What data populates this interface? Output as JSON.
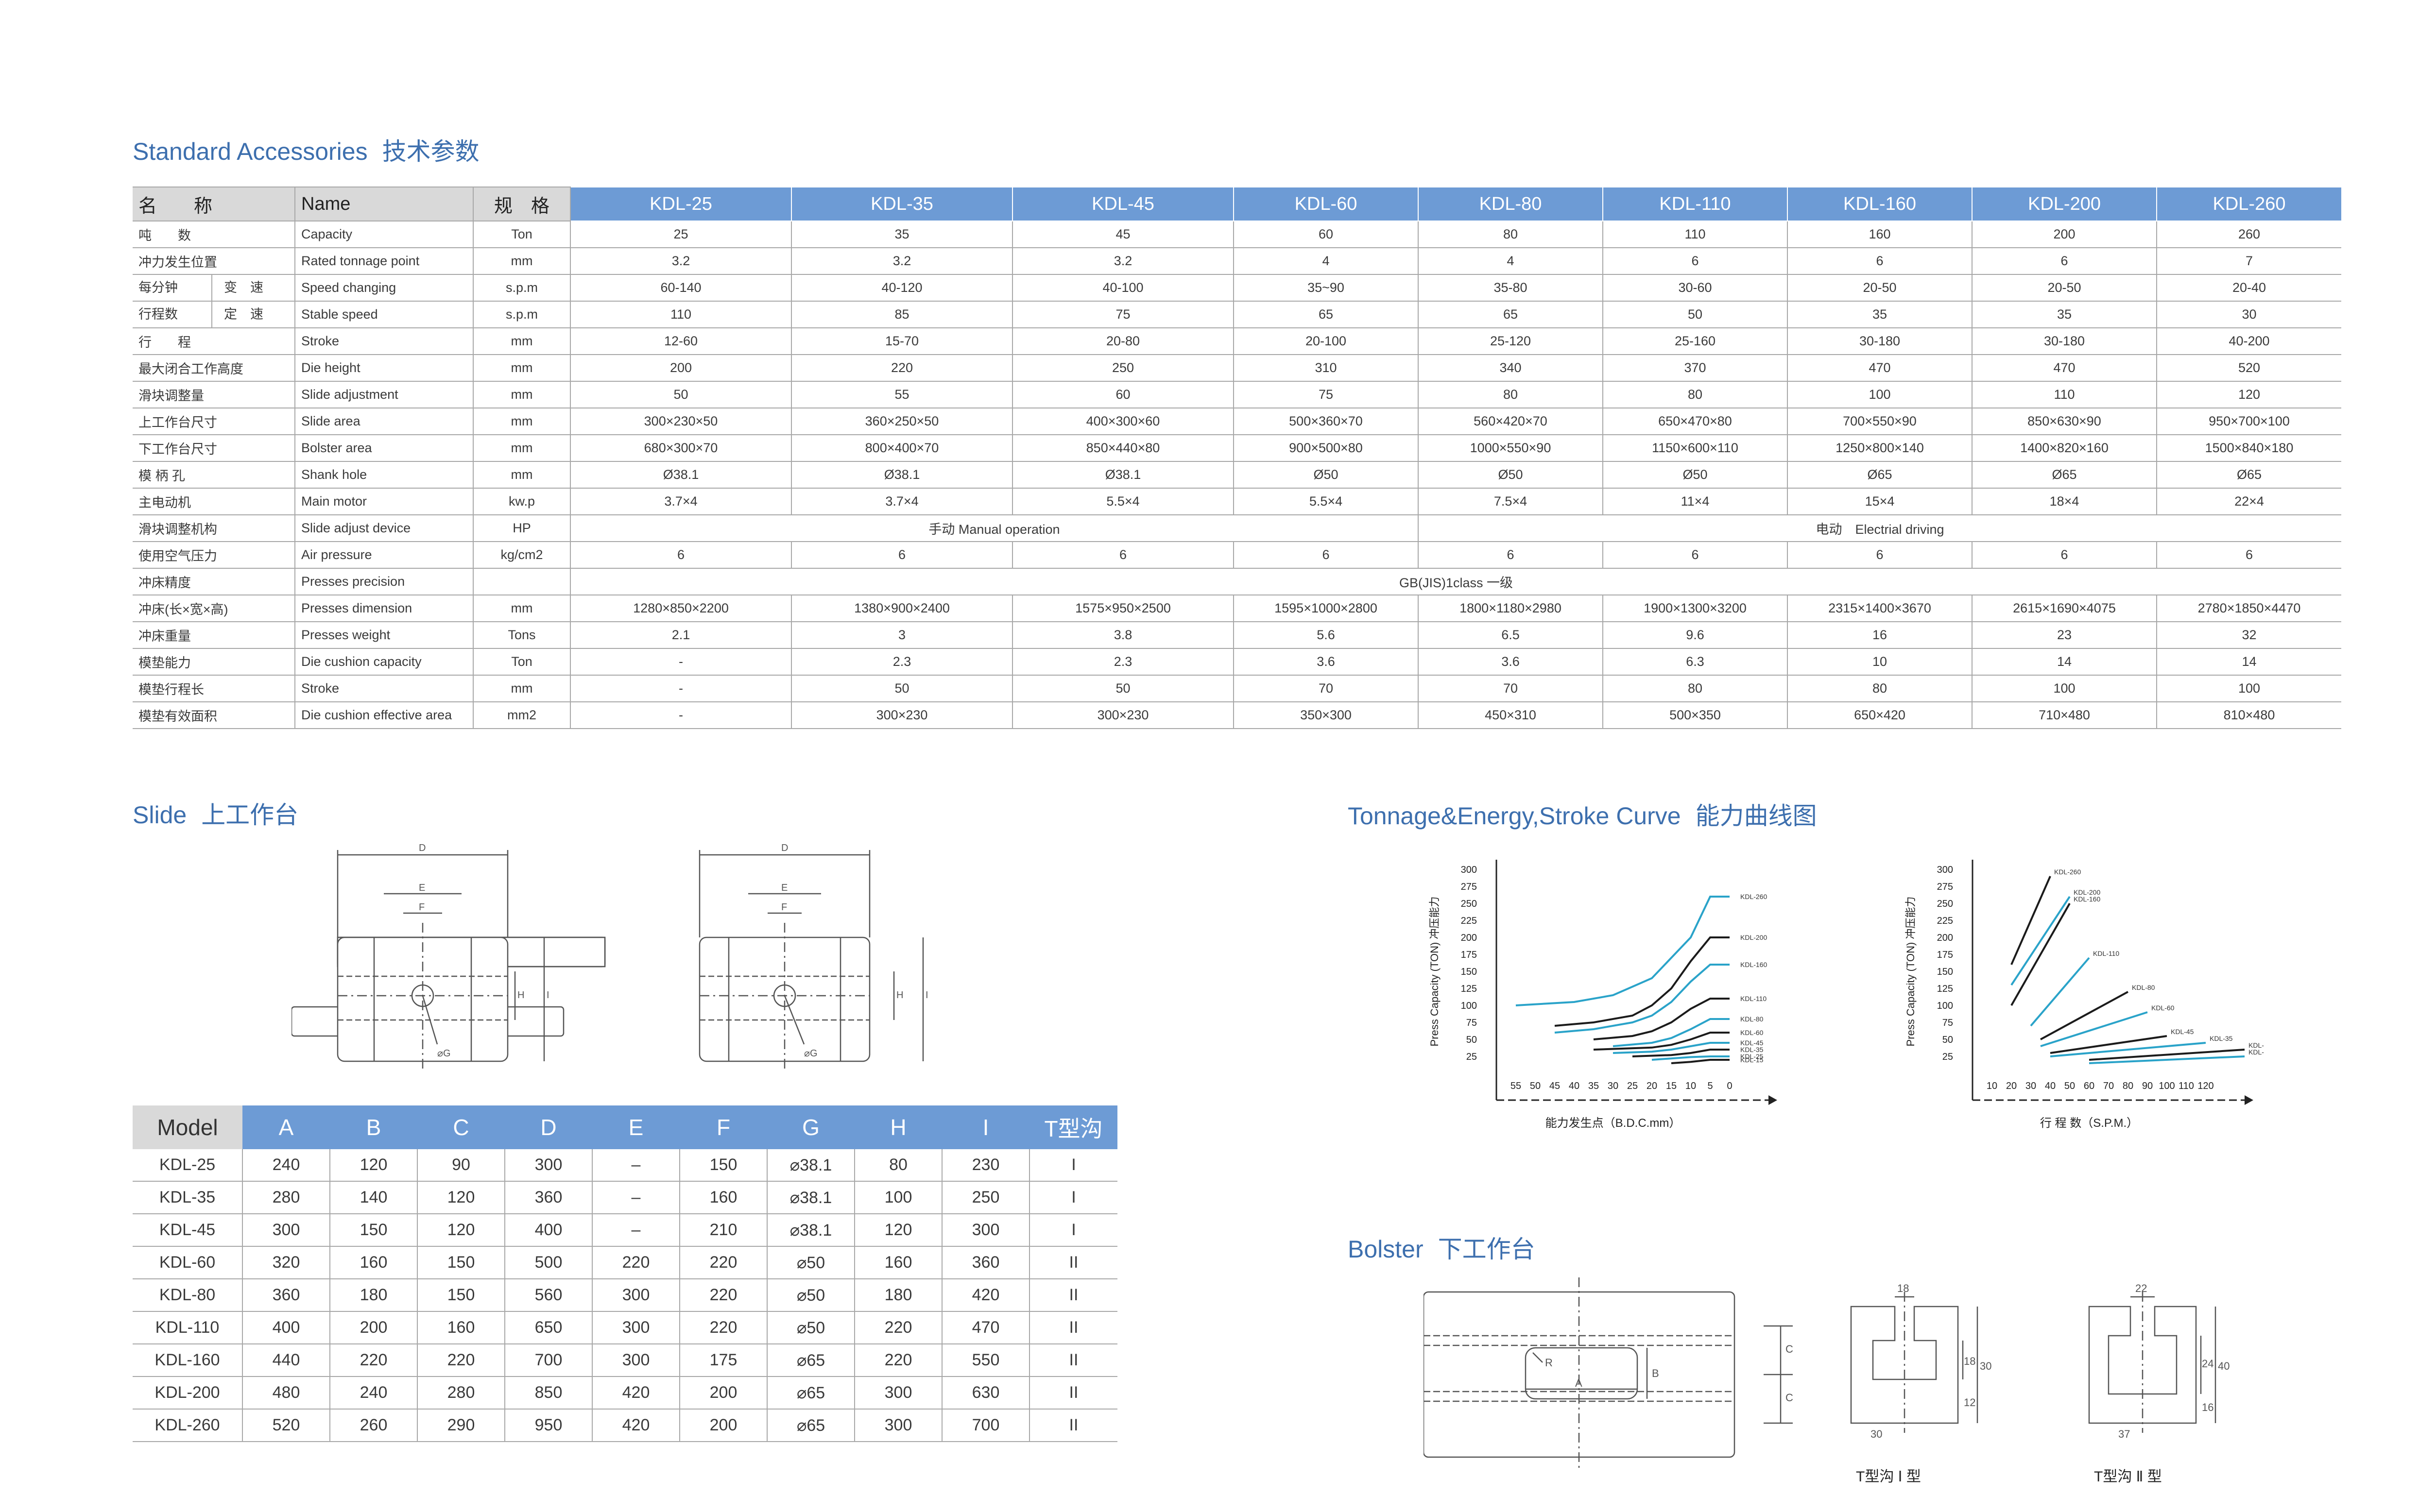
{
  "titles": {
    "accessories_en": "Standard Accessories",
    "accessories_zh": "技术参数",
    "slide_en": "Slide",
    "slide_zh": "上工作台",
    "curve_en": "Tonnage&Energy,Stroke Curve",
    "curve_zh": "能力曲线图",
    "bolster_en": "Bolster",
    "bolster_zh": "下工作台"
  },
  "spec_header": {
    "name_zh": "名　　称",
    "name_en": "Name",
    "unit": "规　格",
    "models": [
      "KDL-25",
      "KDL-35",
      "KDL-45",
      "KDL-60",
      "KDL-80",
      "KDL-110",
      "KDL-160",
      "KDL-200",
      "KDL-260"
    ]
  },
  "spec_rows": [
    {
      "zh": "吨　　数",
      "en": "Capacity",
      "unit": "Ton",
      "values": [
        "25",
        "35",
        "45",
        "60",
        "80",
        "110",
        "160",
        "200",
        "260"
      ]
    },
    {
      "zh": "冲力发生位置",
      "en": "Rated tonnage point",
      "unit": "mm",
      "values": [
        "3.2",
        "3.2",
        "3.2",
        "4",
        "4",
        "6",
        "6",
        "6",
        "7"
      ]
    },
    {
      "zh": "每分钟",
      "zh2": "变　速",
      "en": "Speed changing",
      "unit": "s.p.m",
      "values": [
        "60-140",
        "40-120",
        "40-100",
        "35~90",
        "35-80",
        "30-60",
        "20-50",
        "20-50",
        "20-40"
      ]
    },
    {
      "zh": "行程数",
      "zh2": "定　速",
      "en": "Stable speed",
      "unit": "s.p.m",
      "values": [
        "110",
        "85",
        "75",
        "65",
        "65",
        "50",
        "35",
        "35",
        "30"
      ]
    },
    {
      "zh": "行　　程",
      "en": "Stroke",
      "unit": "mm",
      "values": [
        "12-60",
        "15-70",
        "20-80",
        "20-100",
        "25-120",
        "25-160",
        "30-180",
        "30-180",
        "40-200"
      ]
    },
    {
      "zh": "最大闭合工作高度",
      "en": "Die height",
      "unit": "mm",
      "values": [
        "200",
        "220",
        "250",
        "310",
        "340",
        "370",
        "470",
        "470",
        "520"
      ]
    },
    {
      "zh": "滑块调整量",
      "en": "Slide adjustment",
      "unit": "mm",
      "values": [
        "50",
        "55",
        "60",
        "75",
        "80",
        "80",
        "100",
        "110",
        "120"
      ]
    },
    {
      "zh": "上工作台尺寸",
      "en": "Slide area",
      "unit": "mm",
      "values": [
        "300×230×50",
        "360×250×50",
        "400×300×60",
        "500×360×70",
        "560×420×70",
        "650×470×80",
        "700×550×90",
        "850×630×90",
        "950×700×100"
      ]
    },
    {
      "zh": "下工作台尺寸",
      "en": "Bolster area",
      "unit": "mm",
      "values": [
        "680×300×70",
        "800×400×70",
        "850×440×80",
        "900×500×80",
        "1000×550×90",
        "1150×600×110",
        "1250×800×140",
        "1400×820×160",
        "1500×840×180"
      ]
    },
    {
      "zh": "模 柄 孔",
      "en": "Shank hole",
      "unit": "mm",
      "values": [
        "Ø38.1",
        "Ø38.1",
        "Ø38.1",
        "Ø50",
        "Ø50",
        "Ø50",
        "Ø65",
        "Ø65",
        "Ø65"
      ]
    },
    {
      "zh": "主电动机",
      "en": "Main motor",
      "unit": "kw.p",
      "values": [
        "3.7×4",
        "3.7×4",
        "5.5×4",
        "5.5×4",
        "7.5×4",
        "11×4",
        "15×4",
        "18×4",
        "22×4"
      ]
    },
    {
      "zh": "滑块调整机构",
      "en": "Slide adjust device",
      "unit": "HP",
      "manual": "手动 Manual operation",
      "electric": "电动　Electrial driving"
    },
    {
      "zh": "使用空气压力",
      "en": "Air pressure",
      "unit": "kg/cm2",
      "values": [
        "6",
        "6",
        "6",
        "6",
        "6",
        "6",
        "6",
        "6",
        "6"
      ]
    },
    {
      "zh": "冲床精度",
      "en": "Presses precision",
      "unit": "",
      "span": "GB(JIS)1class 一级"
    },
    {
      "zh": "冲床(长×宽×高)",
      "en": "Presses dimension",
      "unit": "mm",
      "values": [
        "1280×850×2200",
        "1380×900×2400",
        "1575×950×2500",
        "1595×1000×2800",
        "1800×1180×2980",
        "1900×1300×3200",
        "2315×1400×3670",
        "2615×1690×4075",
        "2780×1850×4470"
      ]
    },
    {
      "zh": "冲床重量",
      "en": "Presses weight",
      "unit": "Tons",
      "values": [
        "2.1",
        "3",
        "3.8",
        "5.6",
        "6.5",
        "9.6",
        "16",
        "23",
        "32"
      ]
    },
    {
      "zh": "模垫能力",
      "en": "Die cushion capacity",
      "unit": "Ton",
      "values": [
        "-",
        "2.3",
        "2.3",
        "3.6",
        "3.6",
        "6.3",
        "10",
        "14",
        "14"
      ]
    },
    {
      "zh": "模垫行程长",
      "en": "Stroke",
      "unit": "mm",
      "values": [
        "-",
        "50",
        "50",
        "70",
        "70",
        "80",
        "80",
        "100",
        "100"
      ]
    },
    {
      "zh": "模垫有效面积",
      "en": "Die cushion effective area",
      "unit": "mm2",
      "values": [
        "-",
        "300×230",
        "300×230",
        "350×300",
        "450×310",
        "500×350",
        "650×420",
        "710×480",
        "810×480"
      ]
    }
  ],
  "slide_table": {
    "columns": [
      "Model",
      "A",
      "B",
      "C",
      "D",
      "E",
      "F",
      "G",
      "H",
      "I",
      "T型沟"
    ],
    "rows": [
      [
        "KDL-25",
        "240",
        "120",
        "90",
        "300",
        "–",
        "150",
        "⌀38.1",
        "80",
        "230",
        "I"
      ],
      [
        "KDL-35",
        "280",
        "140",
        "120",
        "360",
        "–",
        "160",
        "⌀38.1",
        "100",
        "250",
        "I"
      ],
      [
        "KDL-45",
        "300",
        "150",
        "120",
        "400",
        "–",
        "210",
        "⌀38.1",
        "120",
        "300",
        "I"
      ],
      [
        "KDL-60",
        "320",
        "160",
        "150",
        "500",
        "220",
        "220",
        "⌀50",
        "160",
        "360",
        "II"
      ],
      [
        "KDL-80",
        "360",
        "180",
        "150",
        "560",
        "300",
        "220",
        "⌀50",
        "180",
        "420",
        "II"
      ],
      [
        "KDL-110",
        "400",
        "200",
        "160",
        "650",
        "300",
        "220",
        "⌀50",
        "220",
        "470",
        "II"
      ],
      [
        "KDL-160",
        "440",
        "220",
        "220",
        "700",
        "300",
        "175",
        "⌀65",
        "220",
        "550",
        "II"
      ],
      [
        "KDL-200",
        "480",
        "240",
        "280",
        "850",
        "420",
        "200",
        "⌀65",
        "300",
        "630",
        "II"
      ],
      [
        "KDL-260",
        "520",
        "260",
        "290",
        "950",
        "420",
        "200",
        "⌀65",
        "300",
        "700",
        "II"
      ]
    ]
  },
  "slide_drawing_labels": {
    "d": "D",
    "e": "E",
    "f": "F",
    "h": "H",
    "i": "I",
    "g": "⌀G"
  },
  "chart_data": [
    {
      "type": "line",
      "ylabel": "Press Capacity (TON) 冲压能力",
      "xlabel": "能力发生点（B.D.C.mm）",
      "y_ticks": [
        "300",
        "275",
        "250",
        "225",
        "200",
        "175",
        "150",
        "125",
        "100",
        "75",
        "50",
        "25"
      ],
      "x_ticks": [
        "55",
        "50",
        "45",
        "40",
        "35",
        "30",
        "25",
        "20",
        "15",
        "10",
        "5",
        "0"
      ],
      "series": [
        {
          "name": "KDL-260",
          "color": "#2aa3c9",
          "x": [
            55,
            40,
            30,
            20,
            15,
            10,
            5,
            0
          ],
          "y": [
            100,
            105,
            115,
            140,
            170,
            200,
            260,
            260
          ]
        },
        {
          "name": "KDL-200",
          "color": "#1b1b1b",
          "x": [
            45,
            35,
            25,
            20,
            15,
            10,
            5,
            0
          ],
          "y": [
            70,
            75,
            85,
            100,
            125,
            165,
            200,
            200
          ]
        },
        {
          "name": "KDL-160",
          "color": "#2aa3c9",
          "x": [
            45,
            35,
            25,
            20,
            15,
            10,
            5,
            0
          ],
          "y": [
            60,
            65,
            75,
            85,
            105,
            135,
            160,
            160
          ]
        },
        {
          "name": "KDL-110",
          "color": "#1b1b1b",
          "x": [
            35,
            25,
            20,
            15,
            10,
            5,
            0
          ],
          "y": [
            50,
            55,
            62,
            75,
            95,
            110,
            110
          ]
        },
        {
          "name": "KDL-80",
          "color": "#2aa3c9",
          "x": [
            30,
            20,
            15,
            10,
            5,
            0
          ],
          "y": [
            40,
            45,
            52,
            65,
            80,
            80
          ]
        },
        {
          "name": "KDL-60",
          "color": "#1b1b1b",
          "x": [
            35,
            20,
            15,
            10,
            5,
            0
          ],
          "y": [
            35,
            38,
            42,
            50,
            60,
            60
          ]
        },
        {
          "name": "KDL-45",
          "color": "#2aa3c9",
          "x": [
            30,
            20,
            15,
            10,
            5,
            0
          ],
          "y": [
            30,
            32,
            35,
            40,
            45,
            45
          ]
        },
        {
          "name": "KDL-35",
          "color": "#1b1b1b",
          "x": [
            25,
            15,
            10,
            5,
            0
          ],
          "y": [
            25,
            27,
            30,
            35,
            35
          ]
        },
        {
          "name": "KDL-25",
          "color": "#2aa3c9",
          "x": [
            20,
            15,
            10,
            5,
            0
          ],
          "y": [
            20,
            22,
            24,
            25,
            25
          ]
        },
        {
          "name": "KDL-15",
          "color": "#1b1b1b",
          "x": [
            15,
            10,
            5,
            0
          ],
          "y": [
            15,
            17,
            20,
            20
          ]
        }
      ]
    },
    {
      "type": "line",
      "ylabel": "Press Capacity (TON) 冲压能力",
      "xlabel": "行 程 数（S.P.M.）",
      "y_ticks": [
        "300",
        "275",
        "250",
        "225",
        "200",
        "175",
        "150",
        "125",
        "100",
        "75",
        "50",
        "25"
      ],
      "x_ticks": [
        "10",
        "20",
        "30",
        "40",
        "50",
        "60",
        "70",
        "80",
        "90",
        "100",
        "110",
        "120"
      ],
      "series": [
        {
          "name": "KDL-260",
          "color": "#1b1b1b",
          "x": [
            20,
            40
          ],
          "y": [
            160,
            290
          ]
        },
        {
          "name": "KDL-200",
          "color": "#2aa3c9",
          "x": [
            20,
            50
          ],
          "y": [
            130,
            260
          ]
        },
        {
          "name": "KDL-160",
          "color": "#1b1b1b",
          "x": [
            20,
            50
          ],
          "y": [
            100,
            250
          ]
        },
        {
          "name": "KDL-110",
          "color": "#2aa3c9",
          "x": [
            30,
            60
          ],
          "y": [
            70,
            170
          ]
        },
        {
          "name": "KDL-80",
          "color": "#1b1b1b",
          "x": [
            35,
            80
          ],
          "y": [
            50,
            120
          ]
        },
        {
          "name": "KDL-60",
          "color": "#2aa3c9",
          "x": [
            35,
            90
          ],
          "y": [
            40,
            90
          ]
        },
        {
          "name": "KDL-45",
          "color": "#1b1b1b",
          "x": [
            40,
            100
          ],
          "y": [
            30,
            55
          ]
        },
        {
          "name": "KDL-35",
          "color": "#2aa3c9",
          "x": [
            40,
            120
          ],
          "y": [
            25,
            45
          ]
        },
        {
          "name": "KDL-25",
          "color": "#1b1b1b",
          "x": [
            60,
            140
          ],
          "y": [
            20,
            35
          ]
        },
        {
          "name": "KDL-15",
          "color": "#2aa3c9",
          "x": [
            60,
            140
          ],
          "y": [
            15,
            25
          ]
        }
      ]
    }
  ],
  "bolster_labels": {
    "a": "A",
    "b": "B",
    "r": "R",
    "c": "C",
    "t1_caption": "T型沟 Ⅰ 型",
    "t2_caption": "T型沟 Ⅱ 型",
    "t1_top": "18",
    "t1_h1": "18",
    "t1_h2": "12",
    "t1_total": "30",
    "t1_bottom": "30",
    "t2_top": "22",
    "t2_h1": "24",
    "t2_h2": "16",
    "t2_total": "40",
    "t2_bottom": "37"
  }
}
